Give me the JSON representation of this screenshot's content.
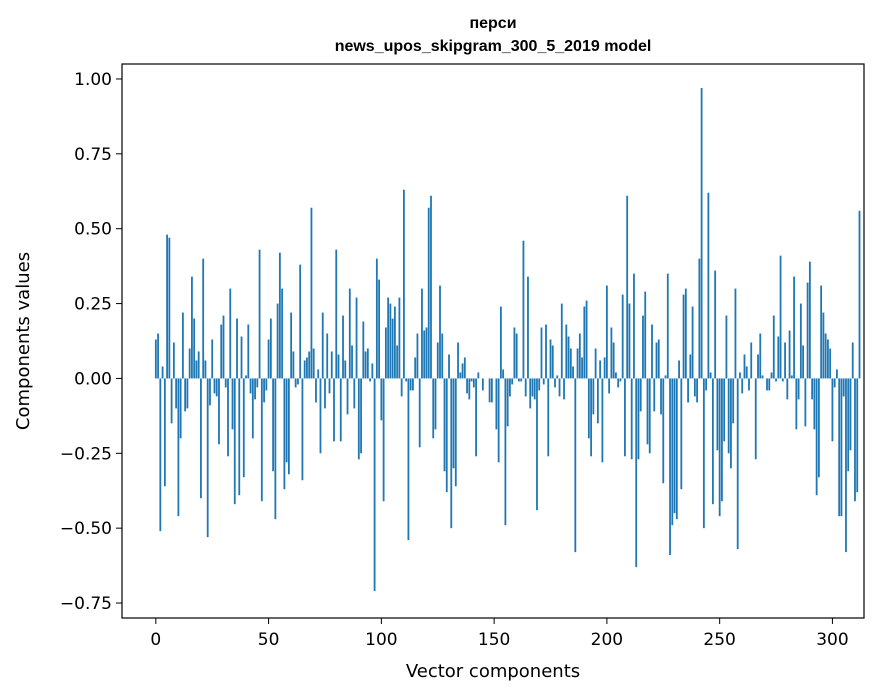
{
  "chart_data": {
    "type": "bar",
    "title": "перси",
    "subtitle": "news_upos_skipgram_300_5_2019 model",
    "xlabel": "Vector components",
    "ylabel": "Components values",
    "xlim": [
      -15,
      314
    ],
    "ylim": [
      -0.8,
      1.05
    ],
    "xticks": [
      0,
      50,
      100,
      150,
      200,
      250,
      300
    ],
    "yticks": [
      -0.75,
      -0.5,
      -0.25,
      0.0,
      0.25,
      0.5,
      0.75,
      1.0
    ],
    "ytick_labels": [
      "−0.75",
      "−0.50",
      "−0.25",
      "0.00",
      "0.25",
      "0.50",
      "0.75",
      "1.00"
    ],
    "grid": false,
    "bar_color": "#1f77b4",
    "values": [
      0.13,
      0.15,
      -0.51,
      0.04,
      -0.36,
      0.48,
      0.47,
      -0.15,
      0.12,
      -0.1,
      -0.46,
      -0.2,
      0.22,
      -0.11,
      -0.1,
      0.1,
      0.34,
      0.2,
      0.06,
      0.09,
      -0.4,
      0.4,
      0.06,
      -0.53,
      -0.09,
      0.13,
      -0.05,
      -0.06,
      -0.22,
      0.18,
      0.21,
      -0.03,
      -0.26,
      0.3,
      -0.17,
      -0.42,
      0.2,
      -0.39,
      0.14,
      -0.33,
      0.01,
      0.18,
      -0.05,
      -0.2,
      -0.07,
      -0.03,
      0.43,
      -0.41,
      -0.08,
      -0.04,
      0.13,
      0.2,
      -0.31,
      -0.47,
      0.25,
      0.42,
      0.3,
      -0.37,
      -0.28,
      -0.32,
      0.22,
      0.09,
      -0.03,
      -0.02,
      0.38,
      -0.34,
      0.06,
      0.07,
      0.09,
      0.57,
      0.1,
      -0.08,
      0.03,
      -0.25,
      0.22,
      -0.1,
      0.15,
      -0.05,
      0.09,
      -0.21,
      0.43,
      0.08,
      -0.21,
      0.21,
      0.06,
      -0.12,
      0.3,
      0.11,
      -0.1,
      0.27,
      -0.27,
      -0.25,
      0.19,
      0.09,
      0.1,
      -0.01,
      0.05,
      -0.71,
      0.4,
      0.33,
      -0.14,
      -0.41,
      0.17,
      0.27,
      0.25,
      0.2,
      0.24,
      0.11,
      0.27,
      -0.06,
      0.63,
      -0.01,
      -0.54,
      -0.04,
      -0.04,
      0.07,
      0.15,
      -0.23,
      0.3,
      0.16,
      0.17,
      0.57,
      0.61,
      -0.2,
      -0.17,
      0.12,
      0.31,
      0.15,
      -0.31,
      -0.38,
      0.08,
      -0.5,
      -0.3,
      -0.36,
      0.12,
      0.02,
      0.05,
      0.07,
      -0.05,
      -0.07,
      -0.01,
      -0.03,
      -0.26,
      0.02,
      0.0,
      -0.04,
      0.0,
      0.0,
      -0.08,
      -0.08,
      0.0,
      -0.17,
      -0.28,
      0.24,
      0.03,
      -0.49,
      -0.16,
      -0.06,
      -0.02,
      0.17,
      0.15,
      -0.01,
      -0.01,
      0.46,
      -0.06,
      0.34,
      -0.1,
      -0.06,
      -0.07,
      -0.44,
      -0.04,
      0.17,
      -0.02,
      0.18,
      -0.26,
      0.13,
      0.11,
      -0.03,
      0.01,
      -0.06,
      0.25,
      -0.07,
      0.18,
      0.14,
      0.1,
      0.04,
      -0.58,
      0.1,
      0.15,
      0.07,
      0.24,
      0.26,
      -0.2,
      -0.26,
      -0.12,
      0.1,
      -0.15,
      0.06,
      -0.28,
      0.07,
      0.31,
      -0.05,
      0.17,
      0.12,
      0.02,
      -0.03,
      -0.01,
      0.28,
      -0.26,
      0.61,
      0.25,
      -0.27,
      0.35,
      -0.63,
      -0.27,
      -0.11,
      0.21,
      0.29,
      -0.22,
      -0.25,
      0.18,
      -0.11,
      0.12,
      0.13,
      -0.12,
      -0.35,
      0.01,
      0.35,
      -0.59,
      -0.49,
      -0.45,
      -0.47,
      0.06,
      -0.37,
      0.28,
      0.3,
      -0.08,
      0.08,
      0.24,
      -0.06,
      -0.08,
      0.4,
      0.97,
      -0.5,
      -0.04,
      0.62,
      0.02,
      -0.42,
      0.36,
      -0.24,
      -0.46,
      -0.41,
      -0.21,
      0.21,
      -0.25,
      -0.3,
      -0.15,
      0.3,
      -0.57,
      0.02,
      -0.05,
      0.08,
      0.04,
      -0.04,
      0.12,
      0.0,
      -0.27,
      0.08,
      0.15,
      0.01,
      0.0,
      -0.04,
      -0.04,
      0.02,
      0.21,
      -0.01,
      0.14,
      0.41,
      -0.01,
      0.12,
      -0.07,
      0.16,
      0.01,
      0.34,
      -0.17,
      -0.07,
      0.25,
      0.11,
      -0.16,
      0.32,
      0.39,
      -0.07,
      -0.17,
      -0.39,
      -0.33,
      0.31,
      0.22,
      0.15,
      0.13,
      0.1,
      -0.21,
      -0.03,
      0.03,
      -0.46,
      -0.46,
      -0.06,
      -0.58,
      -0.31,
      -0.24,
      0.12,
      -0.41,
      -0.38,
      0.56
    ]
  }
}
